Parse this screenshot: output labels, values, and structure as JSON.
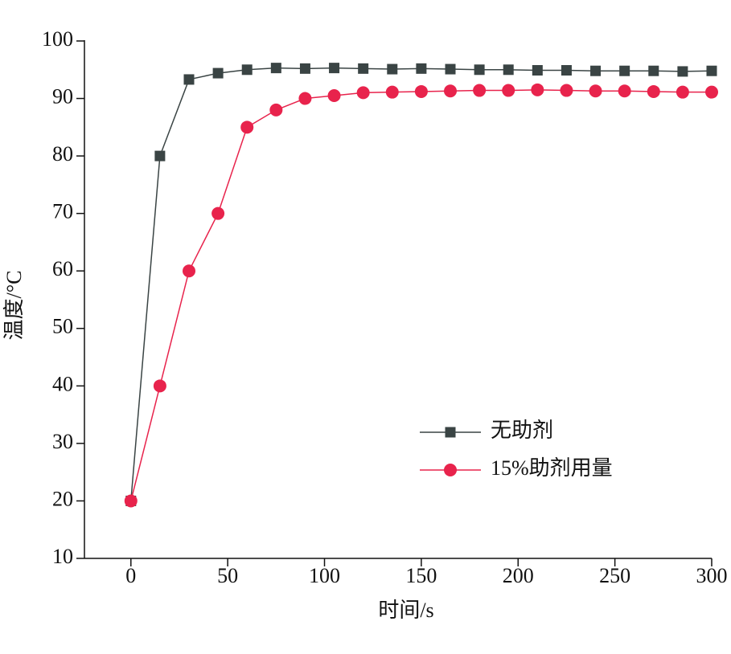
{
  "chart_data": {
    "type": "line",
    "x_label": "时间/s",
    "y_label": "温度/°C",
    "x": [
      0,
      15,
      30,
      45,
      60,
      75,
      90,
      105,
      120,
      135,
      150,
      165,
      180,
      195,
      210,
      225,
      240,
      255,
      270,
      285,
      300
    ],
    "series": [
      {
        "name": "无助剂",
        "color": "#3a4444",
        "marker": "square",
        "values": [
          20,
          80,
          93.3,
          94.4,
          95,
          95.3,
          95.2,
          95.3,
          95.2,
          95.1,
          95.2,
          95.1,
          95,
          95,
          94.9,
          94.9,
          94.8,
          94.8,
          94.8,
          94.7,
          94.8
        ]
      },
      {
        "name": "15%助剂用量",
        "color": "#e8234c",
        "marker": "circle",
        "values": [
          20,
          40,
          60,
          70,
          85,
          88,
          90,
          90.5,
          91,
          91.1,
          91.2,
          91.3,
          91.4,
          91.4,
          91.5,
          91.4,
          91.3,
          91.3,
          91.2,
          91.1,
          91.1
        ]
      }
    ],
    "xlim": [
      -24,
      300
    ],
    "xticks": [
      0,
      50,
      100,
      150,
      200,
      250,
      300
    ],
    "ylim": [
      10,
      100
    ],
    "yticks": [
      10,
      20,
      30,
      40,
      50,
      60,
      70,
      80,
      90,
      100
    ]
  }
}
